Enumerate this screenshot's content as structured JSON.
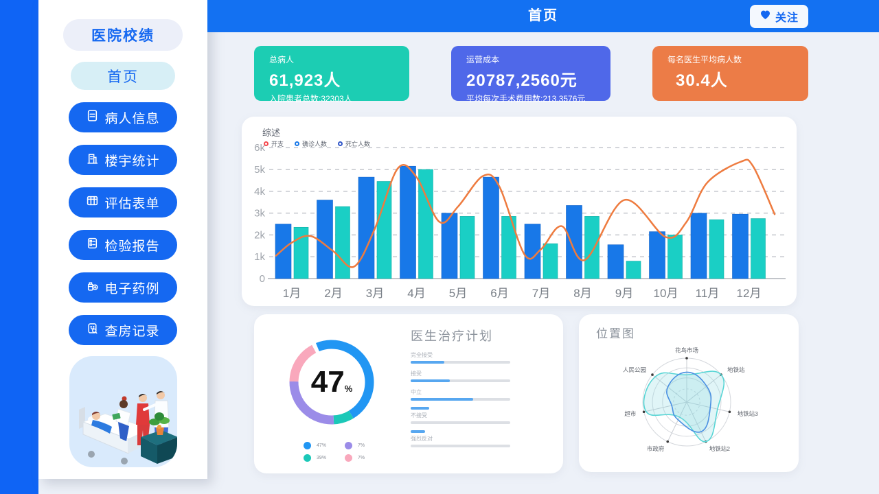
{
  "colors": {
    "accent_blue": "#1568F1",
    "header_blue": "#1371F2",
    "left_strip_blue": "#0F64F5",
    "bar_blue": "#1878E8",
    "bar_teal": "#1ACFC5",
    "line_orange": "#EE7B3F",
    "background": "#EDF1F8"
  },
  "sidebar": {
    "title": "医院校绩",
    "home_label": "首页",
    "items": [
      {
        "label": "病人信息",
        "icon": "document-icon"
      },
      {
        "label": "楼宇统计",
        "icon": "building-icon"
      },
      {
        "label": "评估表单",
        "icon": "table-icon"
      },
      {
        "label": "检验报告",
        "icon": "checklist-icon"
      },
      {
        "label": "电子药例",
        "icon": "medicine-icon"
      },
      {
        "label": "查房记录",
        "icon": "clipboard-search-icon"
      }
    ]
  },
  "header": {
    "title": "首页",
    "follow_label": "关注"
  },
  "stats": [
    {
      "label": "总病人",
      "value": "61,923人",
      "sub": "入院患者总数:32303人",
      "bg": "#1CCDB3"
    },
    {
      "label": "运营成本",
      "value": "20787,2560元",
      "sub": "平均每次手术费用数:213.3576元",
      "bg": "#4F68E9"
    },
    {
      "label": "每名医生平均病人数",
      "value": "30.4人",
      "sub": "",
      "bg": "#EC7C47"
    }
  ],
  "chart_data": [
    {
      "id": "overview",
      "type": "bar",
      "title": "综述",
      "categories": [
        "1月",
        "2月",
        "3月",
        "4月",
        "5月",
        "6月",
        "7月",
        "8月",
        "9月",
        "10月",
        "11月",
        "12月"
      ],
      "legend": [
        {
          "label": "开支",
          "color": "#F5484D"
        },
        {
          "label": "确诊人数",
          "color": "#1878E8"
        },
        {
          "label": "死亡人数",
          "color": "#3056C8"
        }
      ],
      "series": [
        {
          "name": "确诊人数",
          "type": "bar",
          "color": "#1878E8",
          "values": [
            2500,
            3600,
            4650,
            5150,
            3000,
            4650,
            2500,
            3350,
            1550,
            2150,
            3000,
            2950
          ]
        },
        {
          "name": "死亡人数",
          "type": "bar",
          "color": "#1ACFC5",
          "values": [
            2350,
            3300,
            4450,
            5000,
            2850,
            2850,
            1600,
            2850,
            800,
            2000,
            2700,
            2750
          ]
        },
        {
          "name": "开支",
          "type": "line",
          "color": "#EE7B3F",
          "values": [
            1650,
            1250,
            2300,
            4650,
            3300,
            4200,
            1350,
            850,
            3600,
            1900,
            4400,
            5150
          ]
        }
      ],
      "line_curve_points": [
        [
          0.62,
          1050
        ],
        [
          1,
          1650
        ],
        [
          1.45,
          1950
        ],
        [
          2,
          1250
        ],
        [
          2.5,
          550
        ],
        [
          3,
          2300
        ],
        [
          3.55,
          5050
        ],
        [
          4,
          4650
        ],
        [
          4.55,
          2600
        ],
        [
          5,
          3300
        ],
        [
          5.6,
          4700
        ],
        [
          6,
          4200
        ],
        [
          6.6,
          1100
        ],
        [
          7,
          1350
        ],
        [
          7.5,
          2400
        ],
        [
          8.05,
          850
        ],
        [
          9,
          3600
        ],
        [
          10,
          1900
        ],
        [
          10.5,
          2600
        ],
        [
          11,
          4400
        ],
        [
          11.8,
          5350
        ],
        [
          12.1,
          5150
        ],
        [
          12.62,
          2950
        ]
      ],
      "ylim": [
        0,
        6000
      ],
      "yticks": [
        "0",
        "1k",
        "2k",
        "3k",
        "4k",
        "5k",
        "6k"
      ],
      "grid": "dashed"
    },
    {
      "id": "donut",
      "type": "pie",
      "center_value": "47",
      "center_unit": "%",
      "segments": [
        {
          "legend_label": "47%",
          "color": "#2196F3",
          "arc_deg": [
            -22,
            149
          ]
        },
        {
          "legend_label": "39%",
          "color": "#1BC8B8",
          "arc_deg": [
            149,
            177
          ]
        },
        {
          "legend_label": "7%",
          "color": "#9B8CE8",
          "arc_deg": [
            177,
            271
          ]
        },
        {
          "legend_label": "7%",
          "color": "#F9A8BC",
          "arc_deg": [
            271,
            332
          ]
        }
      ],
      "legend": [
        {
          "label": "47%",
          "color": "#2196F3"
        },
        {
          "label": "7%",
          "color": "#9B8CE8"
        },
        {
          "label": "39%",
          "color": "#1BC8B8"
        },
        {
          "label": "7%",
          "color": "#F9A8BC"
        }
      ]
    },
    {
      "id": "treatment",
      "type": "bar",
      "title": "医生治疗计划",
      "categories": [
        "完全接受",
        "接受",
        "中立",
        "不接受",
        "强烈反对"
      ],
      "values": [
        34,
        39,
        63,
        18,
        14
      ],
      "bar_above_label": [
        false,
        false,
        false,
        true,
        true
      ],
      "bar_color": "#57A7F0"
    },
    {
      "id": "radar",
      "type": "radar",
      "title": "位置图",
      "axes": [
        "花鸟市场",
        "地铁站",
        "地铁站3",
        "地铁站2",
        "市政府",
        "超市",
        "人民公园"
      ],
      "series": [
        {
          "name": "range-teal",
          "color": "#58D5D5",
          "fill": "rgba(130,215,222,0.25)",
          "values": [
            0.62,
            1.0,
            0.72,
            1.0,
            0.38,
            0.95,
            0.92
          ]
        },
        {
          "name": "range-blue",
          "color": "#4A8FE2",
          "fill": "rgba(130,215,222,0.22)",
          "values": [
            0.68,
            0.58,
            0.55,
            0.75,
            0.45,
            0.35,
            0.55
          ]
        }
      ]
    }
  ]
}
